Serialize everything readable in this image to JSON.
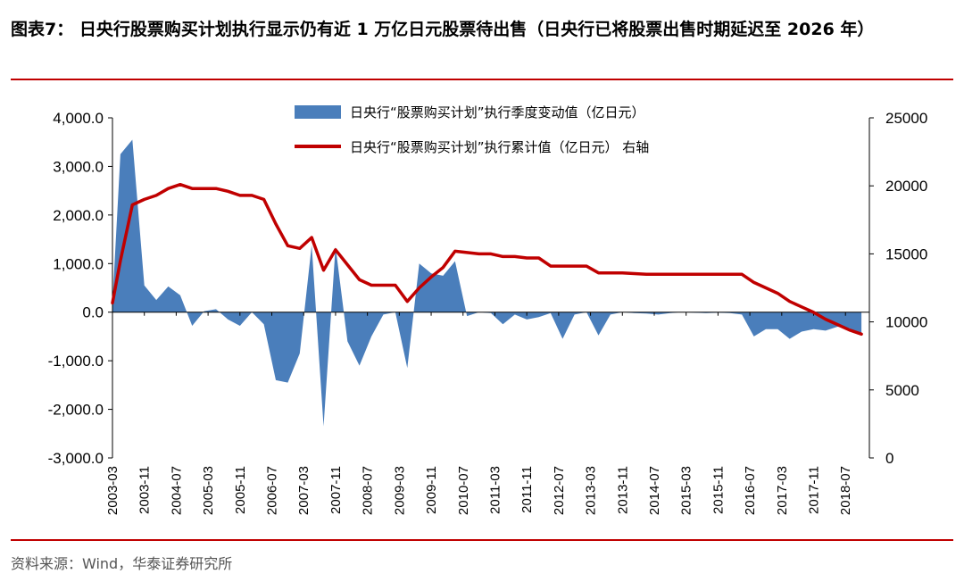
{
  "figure": {
    "title": "图表7： 日央行股票购买计划执行显示仍有近 1 万亿日元股票待出售（日央行已将股票出售时期延迟至 2026 年）",
    "source": "资料来源：Wind，华泰证券研究所"
  },
  "colors": {
    "area": "#4a7ebb",
    "line": "#c00000",
    "rule": "#c00000"
  },
  "chart_data": {
    "type": "area+line",
    "x_ticks": [
      "2003-03",
      "2003-11",
      "2004-07",
      "2005-03",
      "2005-11",
      "2006-07",
      "2007-03",
      "2007-11",
      "2008-07",
      "2009-03",
      "2009-11",
      "2010-07",
      "2011-03",
      "2011-11",
      "2012-07",
      "2013-03",
      "2013-11",
      "2014-07",
      "2015-03",
      "2015-11",
      "2016-07",
      "2017-03",
      "2017-11",
      "2018-07"
    ],
    "y_left": {
      "ylim": [
        -3000,
        4000
      ],
      "ticks": [
        "-3,000.0",
        "-2,000.0",
        "-1,000.0",
        "0.0",
        "1,000.0",
        "2,000.0",
        "3,000.0",
        "4,000.0"
      ]
    },
    "y_right": {
      "ylim": [
        0,
        25000
      ],
      "ticks": [
        "0",
        "5000",
        "10000",
        "15000",
        "20000",
        "25000"
      ]
    },
    "series": [
      {
        "name": "日央行“股票购买计划”执行季度变动值（亿日元）",
        "type": "area",
        "axis": "left",
        "x": [
          "2003-03",
          "2003-05",
          "2003-08",
          "2003-11",
          "2004-02",
          "2004-05",
          "2004-08",
          "2004-11",
          "2005-02",
          "2005-05",
          "2005-08",
          "2005-11",
          "2006-02",
          "2006-05",
          "2006-08",
          "2006-11",
          "2007-02",
          "2007-05",
          "2007-08",
          "2007-11",
          "2008-02",
          "2008-05",
          "2008-08",
          "2008-11",
          "2009-02",
          "2009-05",
          "2009-08",
          "2009-11",
          "2010-02",
          "2010-05",
          "2010-08",
          "2010-11",
          "2011-02",
          "2011-05",
          "2011-08",
          "2011-11",
          "2012-02",
          "2012-05",
          "2012-08",
          "2012-11",
          "2013-02",
          "2013-05",
          "2013-08",
          "2013-11",
          "2014-02",
          "2014-05",
          "2014-08",
          "2014-11",
          "2015-02",
          "2015-05",
          "2015-08",
          "2015-11",
          "2016-02",
          "2016-05",
          "2016-08",
          "2016-11",
          "2017-02",
          "2017-05",
          "2017-08",
          "2017-11",
          "2018-02",
          "2018-05",
          "2018-08",
          "2018-11"
        ],
        "values": [
          200,
          3250,
          3550,
          550,
          250,
          530,
          350,
          -280,
          20,
          60,
          -150,
          -280,
          0,
          -250,
          -1400,
          -1450,
          -850,
          1380,
          -2350,
          1350,
          -600,
          -1100,
          -500,
          -50,
          0,
          -1150,
          1000,
          800,
          750,
          1050,
          -80,
          0,
          -20,
          -250,
          -50,
          -150,
          -100,
          -20,
          -550,
          -50,
          0,
          -480,
          -50,
          0,
          -20,
          -30,
          -50,
          -20,
          0,
          -10,
          -20,
          -10,
          -20,
          -50,
          -500,
          -350,
          -350,
          -550,
          -400,
          -350,
          -380,
          -300,
          -330,
          -450
        ]
      },
      {
        "name": "日央行“股票购买计划”执行累计值（亿日元） 右轴",
        "type": "line",
        "axis": "right",
        "x": [
          "2003-03",
          "2003-05",
          "2003-08",
          "2003-11",
          "2004-02",
          "2004-05",
          "2004-08",
          "2004-11",
          "2005-02",
          "2005-05",
          "2005-08",
          "2005-11",
          "2006-02",
          "2006-05",
          "2006-08",
          "2006-11",
          "2007-02",
          "2007-05",
          "2007-08",
          "2007-11",
          "2008-02",
          "2008-05",
          "2008-08",
          "2008-11",
          "2009-02",
          "2009-05",
          "2009-08",
          "2009-11",
          "2010-02",
          "2010-05",
          "2010-08",
          "2010-11",
          "2011-02",
          "2011-05",
          "2011-08",
          "2011-11",
          "2012-02",
          "2012-05",
          "2012-08",
          "2012-11",
          "2013-02",
          "2013-05",
          "2013-08",
          "2013-11",
          "2014-02",
          "2014-05",
          "2014-08",
          "2014-11",
          "2015-02",
          "2015-05",
          "2015-08",
          "2015-11",
          "2016-02",
          "2016-05",
          "2016-08",
          "2016-11",
          "2017-02",
          "2017-05",
          "2017-08",
          "2017-11",
          "2018-02",
          "2018-05",
          "2018-08",
          "2018-11"
        ],
        "values": [
          11400,
          14500,
          18600,
          19000,
          19300,
          19800,
          20100,
          19800,
          19800,
          19800,
          19600,
          19300,
          19300,
          19000,
          17200,
          15600,
          15400,
          16200,
          13800,
          15300,
          14200,
          13100,
          12700,
          12700,
          12700,
          11500,
          12500,
          13300,
          14000,
          15200,
          15100,
          15000,
          15000,
          14800,
          14800,
          14700,
          14700,
          14100,
          14100,
          14100,
          14100,
          13600,
          13600,
          13600,
          13550,
          13500,
          13500,
          13500,
          13500,
          13500,
          13500,
          13500,
          13500,
          13500,
          12900,
          12500,
          12100,
          11500,
          11100,
          10700,
          10200,
          9800,
          9400,
          9100
        ]
      }
    ],
    "legend_position": "top-center",
    "grid": false
  }
}
